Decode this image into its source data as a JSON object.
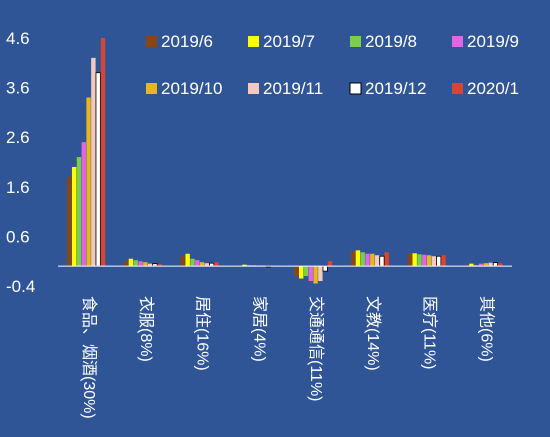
{
  "chart_data": {
    "type": "bar",
    "title": "",
    "xlabel": "",
    "ylabel": "",
    "ylim": [
      -0.4,
      4.6
    ],
    "yticks": [
      4.6,
      3.6,
      2.6,
      1.6,
      0.6,
      -0.4
    ],
    "grid": false,
    "legend_position": "top-right",
    "categories": [
      "食品、烟酒(30%)",
      "衣服(8%)",
      "居住(16%)",
      "家居(4%)",
      "交通通信(11%)",
      "文教(14%)",
      "医疗(11%)",
      "其他(6%)"
    ],
    "series": [
      {
        "name": "2019/6",
        "color": "#8b4513",
        "values": [
          1.8,
          0.1,
          0.2,
          0.0,
          -0.2,
          0.3,
          0.25,
          0.02
        ]
      },
      {
        "name": "2019/7",
        "color": "#ffff00",
        "values": [
          2.0,
          0.15,
          0.25,
          0.03,
          -0.25,
          0.32,
          0.26,
          0.05
        ]
      },
      {
        "name": "2019/8",
        "color": "#7ccd4b",
        "values": [
          2.2,
          0.12,
          0.15,
          0.02,
          -0.2,
          0.28,
          0.24,
          0.02
        ]
      },
      {
        "name": "2019/9",
        "color": "#e066e6",
        "values": [
          2.5,
          0.1,
          0.12,
          0.02,
          -0.3,
          0.25,
          0.23,
          0.05
        ]
      },
      {
        "name": "2019/10",
        "color": "#e6b81e",
        "values": [
          3.4,
          0.08,
          0.08,
          0.01,
          -0.35,
          0.25,
          0.22,
          0.06
        ]
      },
      {
        "name": "2019/11",
        "color": "#f4c9c0",
        "values": [
          4.2,
          0.05,
          0.06,
          0.01,
          -0.3,
          0.22,
          0.2,
          0.07
        ]
      },
      {
        "name": "2019/12",
        "color": "#ffffff",
        "values": [
          3.9,
          0.05,
          0.06,
          0.0,
          -0.1,
          0.2,
          0.2,
          0.07
        ]
      },
      {
        "name": "2020/1",
        "color": "#d9452e",
        "values": [
          4.6,
          0.04,
          0.08,
          0.01,
          0.1,
          0.28,
          0.22,
          0.06
        ]
      }
    ]
  }
}
